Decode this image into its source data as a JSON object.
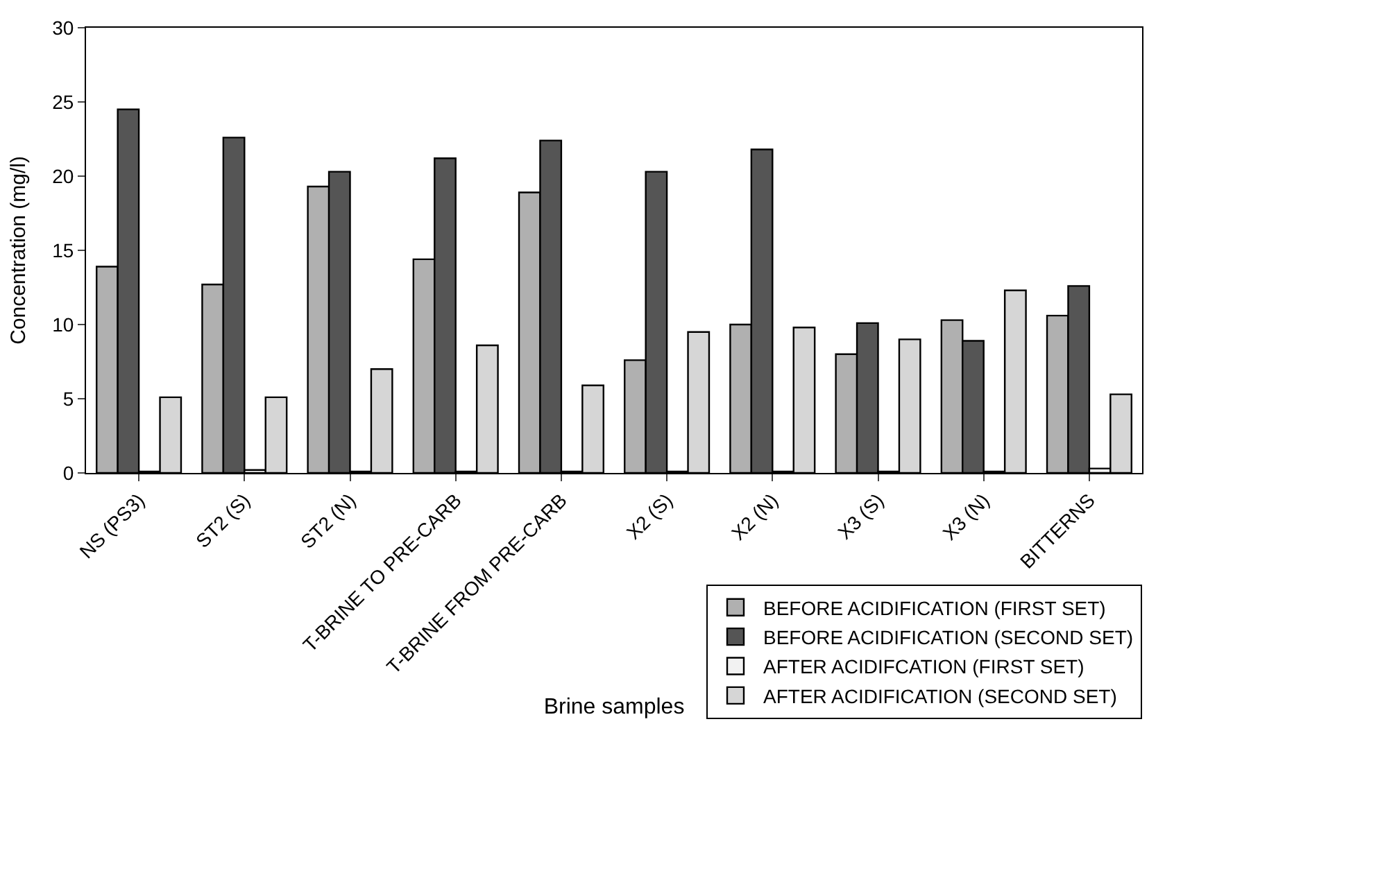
{
  "chart_data": {
    "type": "bar",
    "xlabel": "Brine samples",
    "ylabel": "Concentration (mg/l)",
    "categories": [
      "NS (PS3)",
      "ST2 (S)",
      "ST2 (N)",
      "T-BRINE TO PRE-CARB",
      "T-BRINE FROM PRE-CARB",
      "X2 (S)",
      "X2 (N)",
      "X3 (S)",
      "X3 (N)",
      "BITTERNS"
    ],
    "series": [
      {
        "name": "BEFORE ACIDIFICATION (FIRST SET)",
        "color": "#b0b0b0",
        "values": [
          13.9,
          12.7,
          19.3,
          14.4,
          18.9,
          7.6,
          10.0,
          8.0,
          10.3,
          10.6
        ]
      },
      {
        "name": "BEFORE ACIDIFICATION (SECOND SET)",
        "color": "#555555",
        "values": [
          24.5,
          22.6,
          20.3,
          21.2,
          22.4,
          20.3,
          21.8,
          10.1,
          8.9,
          12.6
        ]
      },
      {
        "name": "AFTER ACIDIFCATION (FIRST SET)",
        "color": "#f2f2f2",
        "values": [
          0.1,
          0.2,
          0.1,
          0.1,
          0.1,
          0.1,
          0.1,
          0.1,
          0.1,
          0.3
        ]
      },
      {
        "name": "AFTER ACIDIFICATION (SECOND SET)",
        "color": "#d6d6d6",
        "values": [
          5.1,
          5.1,
          7.0,
          8.6,
          5.9,
          9.5,
          9.8,
          9.0,
          12.3,
          5.3
        ]
      }
    ],
    "ylim": [
      0,
      30
    ],
    "yticks": [
      0,
      5,
      10,
      15,
      20,
      25,
      30
    ],
    "grid": false,
    "legend": "bottom right"
  }
}
